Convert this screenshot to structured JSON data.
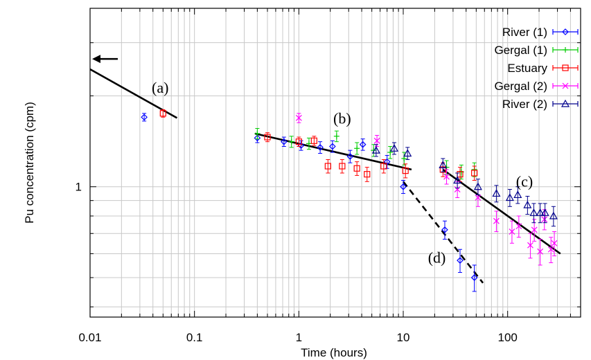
{
  "chart_data": {
    "type": "scatter",
    "xscale": "log",
    "yscale": "log",
    "xlabel": "Time (hours)",
    "ylabel": "Pu concentration (cpm)",
    "xlim": [
      0.01,
      500
    ],
    "ylim": [
      0.37,
      3.9
    ],
    "grid": true,
    "legend_position": "top-right",
    "x_ticks": [
      {
        "value": 0.01,
        "label": "0.01"
      },
      {
        "value": 0.1,
        "label": "0.1"
      },
      {
        "value": 1,
        "label": "1"
      },
      {
        "value": 10,
        "label": "10"
      },
      {
        "value": 100,
        "label": "100"
      }
    ],
    "y_ticks": [
      {
        "value": 1,
        "label": "1"
      }
    ],
    "series": [
      {
        "name": "River (1)",
        "color": "#0000ff",
        "marker": "diamond",
        "points": [
          {
            "x": 0.033,
            "y": 1.7,
            "err": 0.05
          },
          {
            "x": 0.4,
            "y": 1.45,
            "err": 0.05
          },
          {
            "x": 0.72,
            "y": 1.41,
            "err": 0.05
          },
          {
            "x": 1.05,
            "y": 1.37,
            "err": 0.05
          },
          {
            "x": 1.6,
            "y": 1.35,
            "err": 0.06
          },
          {
            "x": 2.1,
            "y": 1.36,
            "err": 0.06
          },
          {
            "x": 3.1,
            "y": 1.26,
            "err": 0.06
          },
          {
            "x": 4.1,
            "y": 1.38,
            "err": 0.06
          },
          {
            "x": 7.0,
            "y": 1.21,
            "err": 0.06
          },
          {
            "x": 10.0,
            "y": 1.0,
            "err": 0.05
          },
          {
            "x": 25.0,
            "y": 0.72,
            "err": 0.05
          },
          {
            "x": 35.0,
            "y": 0.57,
            "err": 0.05
          },
          {
            "x": 48.0,
            "y": 0.5,
            "err": 0.05
          }
        ]
      },
      {
        "name": "Gergal (1)",
        "color": "#00cc00",
        "marker": "plus",
        "points": [
          {
            "x": 0.4,
            "y": 1.5,
            "err": 0.06
          },
          {
            "x": 0.85,
            "y": 1.41,
            "err": 0.06
          },
          {
            "x": 1.25,
            "y": 1.39,
            "err": 0.06
          },
          {
            "x": 2.3,
            "y": 1.47,
            "err": 0.06
          },
          {
            "x": 3.6,
            "y": 1.34,
            "err": 0.06
          },
          {
            "x": 5.2,
            "y": 1.32,
            "err": 0.06
          },
          {
            "x": 7.5,
            "y": 1.3,
            "err": 0.06
          },
          {
            "x": 10.2,
            "y": 1.24,
            "err": 0.06
          },
          {
            "x": 26.0,
            "y": 1.16,
            "err": 0.06
          },
          {
            "x": 36.0,
            "y": 1.12,
            "err": 0.06
          },
          {
            "x": 48.0,
            "y": 1.14,
            "err": 0.06
          }
        ]
      },
      {
        "name": "Estuary",
        "color": "#ff0000",
        "marker": "square",
        "points": [
          {
            "x": 0.05,
            "y": 1.75,
            "err": 0.05
          },
          {
            "x": 0.5,
            "y": 1.46,
            "err": 0.05
          },
          {
            "x": 1.0,
            "y": 1.41,
            "err": 0.05
          },
          {
            "x": 1.4,
            "y": 1.42,
            "err": 0.05
          },
          {
            "x": 1.9,
            "y": 1.17,
            "err": 0.06
          },
          {
            "x": 2.6,
            "y": 1.17,
            "err": 0.06
          },
          {
            "x": 3.6,
            "y": 1.15,
            "err": 0.06
          },
          {
            "x": 4.5,
            "y": 1.1,
            "err": 0.06
          },
          {
            "x": 6.5,
            "y": 1.17,
            "err": 0.06
          },
          {
            "x": 10.5,
            "y": 1.13,
            "err": 0.06
          },
          {
            "x": 24.0,
            "y": 1.14,
            "err": 0.06
          },
          {
            "x": 35.0,
            "y": 1.1,
            "err": 0.06
          },
          {
            "x": 48.0,
            "y": 1.11,
            "err": 0.06
          }
        ]
      },
      {
        "name": "Gergal (2)",
        "color": "#ff00ff",
        "marker": "cross",
        "points": [
          {
            "x": 1.0,
            "y": 1.69,
            "err": 0.06
          },
          {
            "x": 5.6,
            "y": 1.42,
            "err": 0.06
          },
          {
            "x": 26.0,
            "y": 1.08,
            "err": 0.06
          },
          {
            "x": 33.0,
            "y": 0.98,
            "err": 0.06
          },
          {
            "x": 52.0,
            "y": 0.92,
            "err": 0.06
          },
          {
            "x": 78.0,
            "y": 0.77,
            "err": 0.06
          },
          {
            "x": 110.0,
            "y": 0.71,
            "err": 0.06
          },
          {
            "x": 128.0,
            "y": 0.74,
            "err": 0.06
          },
          {
            "x": 165.0,
            "y": 0.64,
            "err": 0.06
          },
          {
            "x": 180.0,
            "y": 0.72,
            "err": 0.06
          },
          {
            "x": 205.0,
            "y": 0.61,
            "err": 0.06
          },
          {
            "x": 225.0,
            "y": 0.78,
            "err": 0.06
          },
          {
            "x": 260.0,
            "y": 0.62,
            "err": 0.06
          },
          {
            "x": 280.0,
            "y": 0.65,
            "err": 0.06
          }
        ]
      },
      {
        "name": "River (2)",
        "color": "#00008b",
        "marker": "triangle",
        "points": [
          {
            "x": 5.5,
            "y": 1.32,
            "err": 0.06
          },
          {
            "x": 8.2,
            "y": 1.34,
            "err": 0.06
          },
          {
            "x": 11.0,
            "y": 1.29,
            "err": 0.06
          },
          {
            "x": 24.0,
            "y": 1.18,
            "err": 0.06
          },
          {
            "x": 33.0,
            "y": 1.05,
            "err": 0.06
          },
          {
            "x": 52.0,
            "y": 1.0,
            "err": 0.06
          },
          {
            "x": 78.0,
            "y": 0.95,
            "err": 0.06
          },
          {
            "x": 105.0,
            "y": 0.92,
            "err": 0.06
          },
          {
            "x": 125.0,
            "y": 0.94,
            "err": 0.06
          },
          {
            "x": 155.0,
            "y": 0.87,
            "err": 0.06
          },
          {
            "x": 178.0,
            "y": 0.82,
            "err": 0.06
          },
          {
            "x": 205.0,
            "y": 0.82,
            "err": 0.06
          },
          {
            "x": 228.0,
            "y": 0.82,
            "err": 0.06
          },
          {
            "x": 275.0,
            "y": 0.8,
            "err": 0.06
          }
        ]
      }
    ],
    "fit_lines": [
      {
        "id": "a",
        "style": "solid",
        "points": [
          [
            0.01,
            2.45
          ],
          [
            0.068,
            1.69
          ]
        ]
      },
      {
        "id": "b",
        "style": "solid",
        "points": [
          [
            0.38,
            1.5
          ],
          [
            12.0,
            1.14
          ]
        ]
      },
      {
        "id": "c",
        "style": "solid",
        "points": [
          [
            24.0,
            1.14
          ],
          [
            320.0,
            0.6
          ]
        ]
      },
      {
        "id": "d",
        "style": "dashed",
        "points": [
          [
            10.0,
            1.04
          ],
          [
            58.0,
            0.48
          ]
        ]
      }
    ],
    "annotations": [
      {
        "text": "(a)",
        "x": 0.047,
        "y": 2.05
      },
      {
        "text": "(b)",
        "x": 2.6,
        "y": 1.62
      },
      {
        "text": "(c)",
        "x": 145,
        "y": 1.0
      },
      {
        "text": "(d)",
        "x": 21,
        "y": 0.56
      }
    ],
    "arrow": {
      "direction": "left",
      "x": 0.01,
      "y": 2.65
    }
  }
}
